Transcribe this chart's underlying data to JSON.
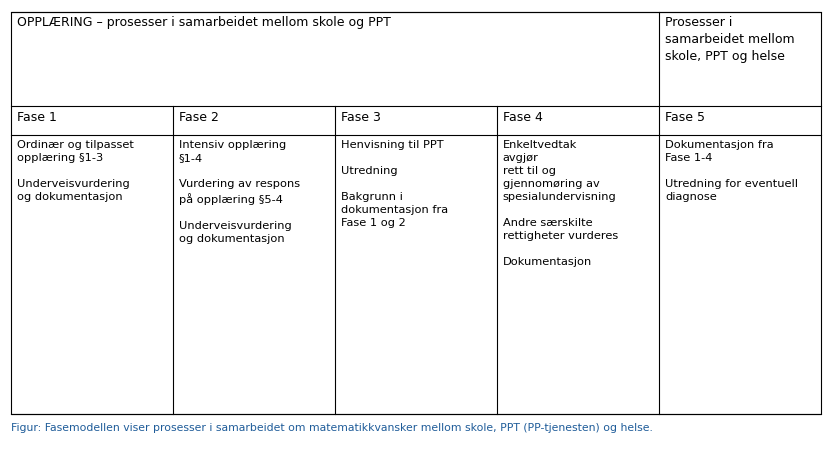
{
  "fig_width": 8.32,
  "fig_height": 4.68,
  "bg_color": "#ffffff",
  "header_row": {
    "col1_4_text": "OPPLÆRING – prosesser i samarbeidet mellom skole og PPT",
    "col5_text": "Prosesser i\nsamarbeidet mellom\nskole, PPT og helse"
  },
  "phase_row": [
    "Fase 1",
    "Fase 2",
    "Fase 3",
    "Fase 4",
    "Fase 5"
  ],
  "content": [
    "Ordinær og tilpasset\nopplæring §1-3\n\nUnderveisvurdering\nog dokumentasjon",
    "Intensiv opplæring\n§1-4\n\nVurdering av respons\npå opplæring §5-4\n\nUnderveisvurdering\nog dokumentasjon",
    "Henvisning til PPT\n\nUtredning\n\nBakgrunn i\ndokumentasjon fra\nFase 1 og 2",
    "Enkeltvedtak\navgjør\nrett til og\ngjennomøring av\nspesialundervisning\n\nAndre særskilte\nrettigheter vurderes\n\nDokumentasjon",
    "Dokumentasjon fra\nFase 1-4\n\nUtredning for eventuell\ndiagnose"
  ],
  "caption": "Figur: Fasemodellen viser prosesser i samarbeidet om matematikkvansker mellom skole, PPT (PP-tjenesten) og helse.",
  "line_color": "#000000",
  "text_color": "#000000",
  "caption_color": "#1f5c99",
  "font_size_header": 9.0,
  "font_size_phase": 9.0,
  "font_size_content": 8.2,
  "font_size_caption": 7.8
}
